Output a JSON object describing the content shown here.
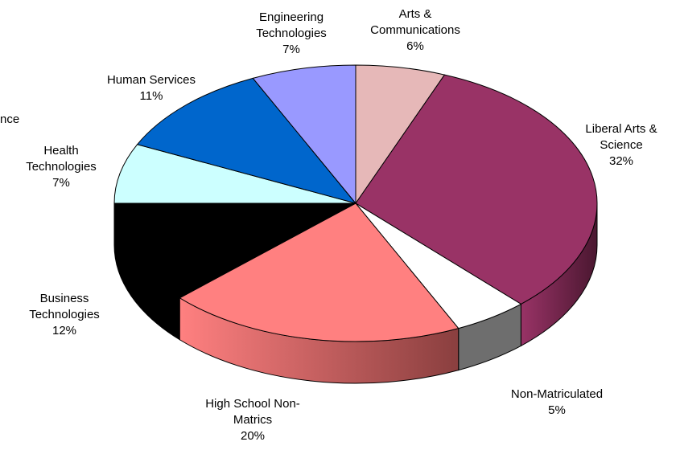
{
  "chart_data": {
    "type": "pie",
    "title": "",
    "slices": [
      {
        "label": "Arts & Communications",
        "label_lines": [
          "Arts &",
          "Communications"
        ],
        "value": 6,
        "value_label": "6%",
        "color": "#e6b8b8",
        "side_color": "#b08a8a"
      },
      {
        "label": "Liberal Arts & Science",
        "label_lines": [
          "Liberal Arts &",
          "Science"
        ],
        "value": 32,
        "value_label": "32%",
        "color": "#993366",
        "side_color": "#4a1730"
      },
      {
        "label": "Non-Matriculated",
        "label_lines": [
          "Non-Matriculated"
        ],
        "value": 5,
        "value_label": "5%",
        "color": "#ffffff",
        "side_color": "#6e6e6e"
      },
      {
        "label": "High School Non-Matrics",
        "label_lines": [
          "High School Non-",
          "Matrics"
        ],
        "value": 20,
        "value_label": "20%",
        "color": "#ff8080",
        "side_color": "#8a3f3f"
      },
      {
        "label": "Business Technologies",
        "label_lines": [
          "Business",
          "Technologies"
        ],
        "value": 12,
        "value_label": "12%",
        "color": "#000000",
        "side_color": "#000000"
      },
      {
        "label": "Health Technologies",
        "label_lines": [
          "Health",
          "Technologies"
        ],
        "value": 7,
        "value_label": "7%",
        "color": "#ccffff",
        "side_color": "#99c2c2"
      },
      {
        "label": "Human Services",
        "label_lines": [
          "Human Services"
        ],
        "value": 11,
        "value_label": "11%",
        "color": "#0066cc",
        "side_color": "#003f80"
      },
      {
        "label": "Engineering Technologies",
        "label_lines": [
          "Engineering",
          "Technologies"
        ],
        "value": 7,
        "value_label": "7%",
        "color": "#9999ff",
        "side_color": "#6666bb"
      }
    ],
    "cropped_label_fragment": "nce"
  }
}
